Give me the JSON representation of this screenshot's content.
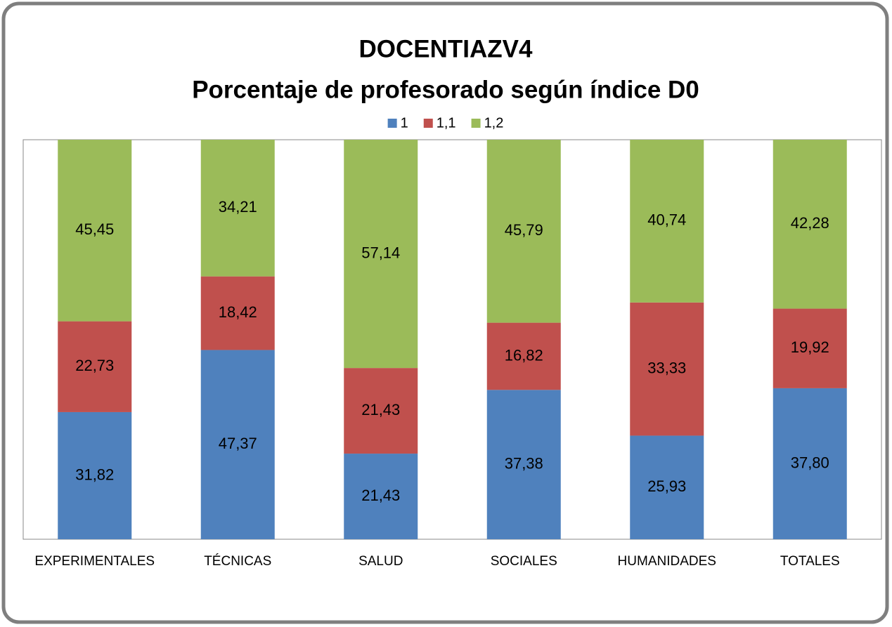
{
  "chart_data": {
    "type": "stacked_bar",
    "title": "DOCENTIAZV4",
    "subtitle": "Porcentaje de profesorado según índice D0",
    "categories": [
      "EXPERIMENTALES",
      "TÉCNICAS",
      "SALUD",
      "SOCIALES",
      "HUMANIDADES",
      "TOTALES"
    ],
    "series": [
      {
        "name": "1",
        "color": "#4f81bd",
        "values": [
          31.82,
          47.37,
          21.43,
          37.38,
          25.93,
          37.8
        ],
        "value_labels": [
          "31,82",
          "47,37",
          "21,43",
          "37,38",
          "25,93",
          "37,80"
        ]
      },
      {
        "name": "1,1",
        "color": "#c0504d",
        "values": [
          22.73,
          18.42,
          21.43,
          16.82,
          33.33,
          19.92
        ],
        "value_labels": [
          "22,73",
          "18,42",
          "21,43",
          "16,82",
          "33,33",
          "19,92"
        ]
      },
      {
        "name": "1,2",
        "color": "#9bbb59",
        "values": [
          45.45,
          34.21,
          57.14,
          45.79,
          40.74,
          42.28
        ],
        "value_labels": [
          "45,45",
          "34,21",
          "57,14",
          "45,79",
          "40,74",
          "42,28"
        ]
      }
    ],
    "ylim": [
      0,
      100
    ],
    "legend": "top"
  }
}
